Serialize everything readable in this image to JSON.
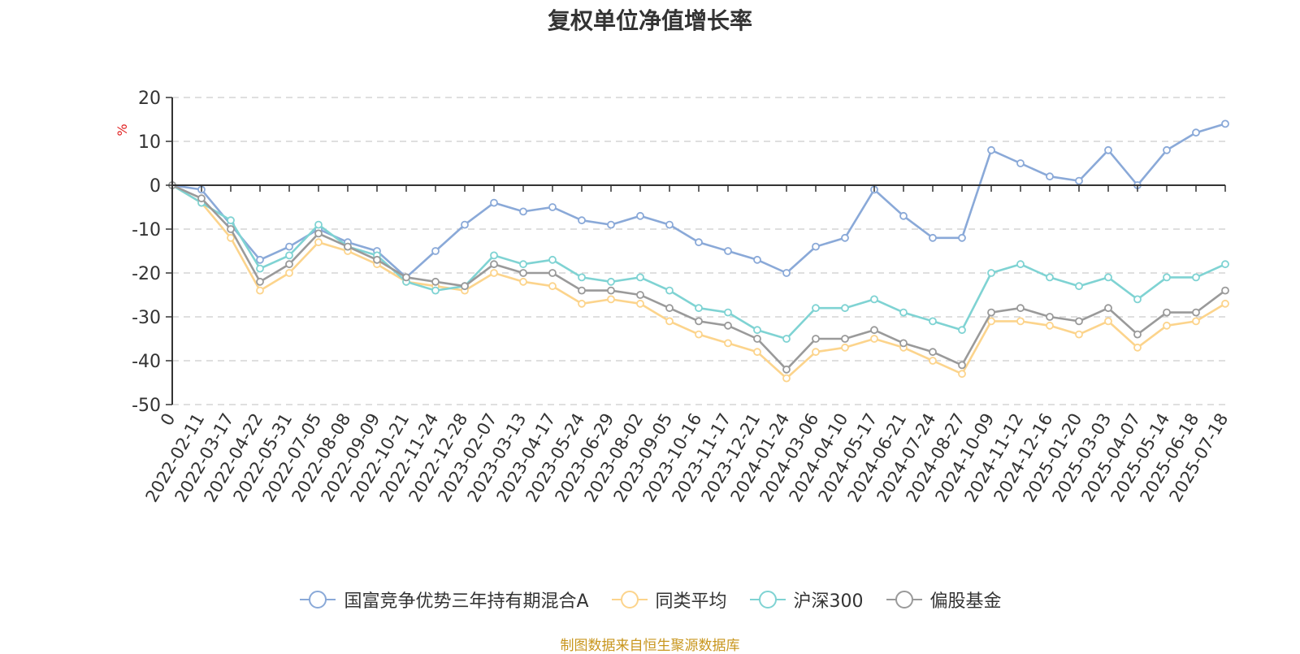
{
  "chart_data": {
    "type": "line",
    "title": "复权单位净值增长率",
    "ylabel": "%",
    "ylim": [
      -50,
      20
    ],
    "yticks": [
      20,
      10,
      0,
      -10,
      -20,
      -30,
      -40,
      -50
    ],
    "grid": true,
    "legend_position": "bottom",
    "x": [
      "0",
      "2022-02-11",
      "2022-03-17",
      "2022-04-22",
      "2022-05-31",
      "2022-07-05",
      "2022-08-08",
      "2022-09-09",
      "2022-10-21",
      "2022-11-24",
      "2022-12-28",
      "2023-02-07",
      "2023-03-13",
      "2023-04-17",
      "2023-05-24",
      "2023-06-29",
      "2023-08-02",
      "2023-09-05",
      "2023-10-16",
      "2023-11-17",
      "2023-12-21",
      "2024-01-24",
      "2024-03-06",
      "2024-04-10",
      "2024-05-17",
      "2024-06-21",
      "2024-07-24",
      "2024-08-27",
      "2024-10-09",
      "2024-11-12",
      "2024-12-16",
      "2025-01-20",
      "2025-03-03",
      "2025-04-07",
      "2025-05-14",
      "2025-06-18",
      "2025-07-18"
    ],
    "series": [
      {
        "name": "国富竞争优势三年持有期混合A",
        "color": "#8aa9d8",
        "values": [
          0,
          -1,
          -9,
          -17,
          -14,
          -10,
          -13,
          -15,
          -21,
          -15,
          -9,
          -4,
          -6,
          -5,
          -8,
          -9,
          -7,
          -9,
          -13,
          -15,
          -17,
          -20,
          -14,
          -12,
          -1,
          -7,
          -12,
          -12,
          8,
          5,
          2,
          1,
          8,
          0,
          8,
          12,
          14
        ]
      },
      {
        "name": "同类平均",
        "color": "#fcd48c",
        "values": [
          0,
          -4,
          -12,
          -24,
          -20,
          -13,
          -15,
          -18,
          -22,
          -23,
          -24,
          -20,
          -22,
          -23,
          -27,
          -26,
          -27,
          -31,
          -34,
          -36,
          -38,
          -44,
          -38,
          -37,
          -35,
          -37,
          -40,
          -43,
          -31,
          -31,
          -32,
          -34,
          -31,
          -37,
          -32,
          -31,
          -27
        ]
      },
      {
        "name": "沪深300",
        "color": "#7fd3d3",
        "values": [
          0,
          -4,
          -8,
          -19,
          -16,
          -9,
          -14,
          -16,
          -22,
          -24,
          -23,
          -16,
          -18,
          -17,
          -21,
          -22,
          -21,
          -24,
          -28,
          -29,
          -33,
          -35,
          -28,
          -28,
          -26,
          -29,
          -31,
          -33,
          -20,
          -18,
          -21,
          -23,
          -21,
          -26,
          -21,
          -21,
          -18
        ]
      },
      {
        "name": "偏股基金",
        "color": "#9a9a9a",
        "values": [
          0,
          -3,
          -10,
          -22,
          -18,
          -11,
          -14,
          -17,
          -21,
          -22,
          -23,
          -18,
          -20,
          -20,
          -24,
          -24,
          -25,
          -28,
          -31,
          -32,
          -35,
          -42,
          -35,
          -35,
          -33,
          -36,
          -38,
          -41,
          -29,
          -28,
          -30,
          -31,
          -28,
          -34,
          -29,
          -29,
          -24
        ]
      }
    ]
  },
  "legend": [
    {
      "label": "国富竞争优势三年持有期混合A",
      "color": "#8aa9d8"
    },
    {
      "label": "同类平均",
      "color": "#fcd48c"
    },
    {
      "label": "沪深300",
      "color": "#7fd3d3"
    },
    {
      "label": "偏股基金",
      "color": "#9a9a9a"
    }
  ],
  "source_note": "制图数据来自恒生聚源数据库",
  "colors": {
    "axis": "#333333",
    "grid": "#cccccc",
    "ylabel": "#e02020",
    "source": "#c8961e"
  }
}
